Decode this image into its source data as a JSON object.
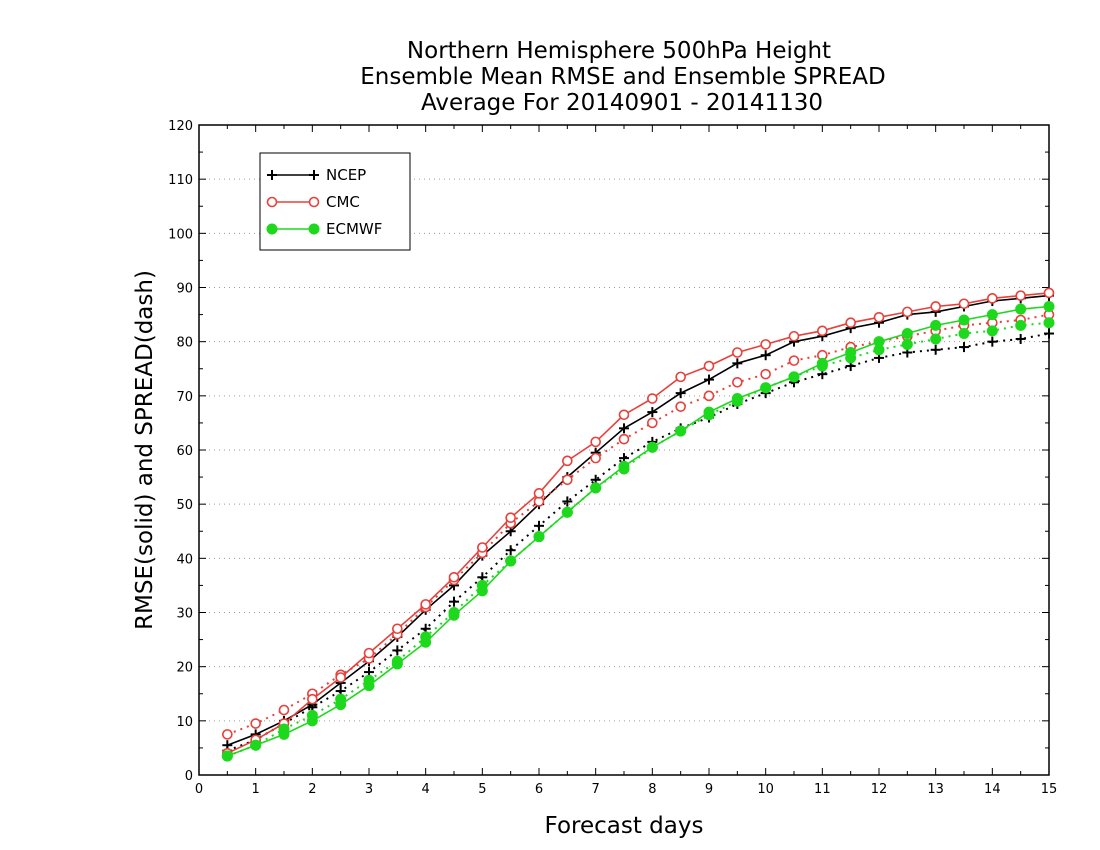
{
  "chart_data": {
    "type": "line",
    "title_lines": [
      "Northern Hemisphere 500hPa Height",
      "Ensemble Mean RMSE and Ensemble SPREAD",
      "Average For 20140901 - 20141130"
    ],
    "xlabel": "Forecast days",
    "ylabel": "RMSE(solid) and SPREAD(dash)",
    "xlim": [
      0,
      15
    ],
    "ylim": [
      0,
      120
    ],
    "xticks": [
      0,
      1,
      2,
      3,
      4,
      5,
      6,
      7,
      8,
      9,
      10,
      11,
      12,
      13,
      14,
      15
    ],
    "yticks": [
      0,
      10,
      20,
      30,
      40,
      50,
      60,
      70,
      80,
      90,
      100,
      110,
      120
    ],
    "grid": true,
    "legend_position": "top-left",
    "x": [
      0.5,
      1,
      1.5,
      2,
      2.5,
      3,
      3.5,
      4,
      4.5,
      5,
      5.5,
      6,
      6.5,
      7,
      7.5,
      8,
      8.5,
      9,
      9.5,
      10,
      10.5,
      11,
      11.5,
      12,
      12.5,
      13,
      13.5,
      14,
      14.5,
      15
    ],
    "series": [
      {
        "name": "NCEP",
        "color": "#000000",
        "marker": "plus",
        "rmse": [
          5.5,
          7.5,
          10,
          13,
          17,
          21,
          25.5,
          30.5,
          35,
          40.5,
          45,
          50,
          55,
          59.5,
          64,
          67,
          70.5,
          73,
          76,
          77.5,
          80,
          81,
          82.5,
          83.5,
          85,
          85.5,
          86.5,
          87.5,
          88,
          88.5
        ],
        "spread": [
          4.5,
          6.5,
          9.5,
          12.5,
          15.5,
          19,
          23,
          27,
          32,
          36.5,
          41.5,
          46,
          50.5,
          54.5,
          58.5,
          61.5,
          64,
          66,
          68.5,
          70.5,
          72.5,
          74,
          75.5,
          77,
          78,
          78.5,
          79,
          80,
          80.5,
          81.5
        ]
      },
      {
        "name": "CMC",
        "color": "#e8403a",
        "marker": "circle-open",
        "rmse": [
          4,
          6.5,
          9.5,
          14,
          18,
          22.5,
          27,
          31.5,
          36.5,
          42,
          47.5,
          52,
          58,
          61.5,
          66.5,
          69.5,
          73.5,
          75.5,
          78,
          79.5,
          81,
          82,
          83.5,
          84.5,
          85.5,
          86.5,
          87,
          88,
          88.5,
          89
        ],
        "spread": [
          7.5,
          9.5,
          12,
          15,
          18.5,
          21.5,
          26,
          31,
          36,
          41,
          46.5,
          50.5,
          54.5,
          58.5,
          62,
          65,
          68,
          70,
          72.5,
          74,
          76.5,
          77.5,
          79,
          80,
          81,
          82,
          83,
          83.5,
          84,
          85
        ]
      },
      {
        "name": "ECMWF",
        "color": "#1ed81e",
        "marker": "circle-filled",
        "rmse": [
          3.5,
          5.5,
          7.5,
          10,
          13,
          16.5,
          20.5,
          24.5,
          29.5,
          34,
          39.5,
          44,
          48.5,
          53,
          57,
          60.5,
          63.5,
          67,
          69.5,
          71.5,
          73.5,
          76,
          78,
          80,
          81.5,
          83,
          84,
          85,
          86,
          86.5
        ],
        "spread": [
          3.5,
          5.5,
          8.5,
          11,
          14,
          17.5,
          21,
          25.5,
          30,
          35,
          39.5,
          44,
          48.5,
          53,
          56.5,
          60.5,
          63.5,
          66.5,
          69,
          71.5,
          73.5,
          75.5,
          77,
          78.5,
          79.5,
          80.5,
          81.5,
          82,
          83,
          83.5
        ]
      }
    ]
  }
}
